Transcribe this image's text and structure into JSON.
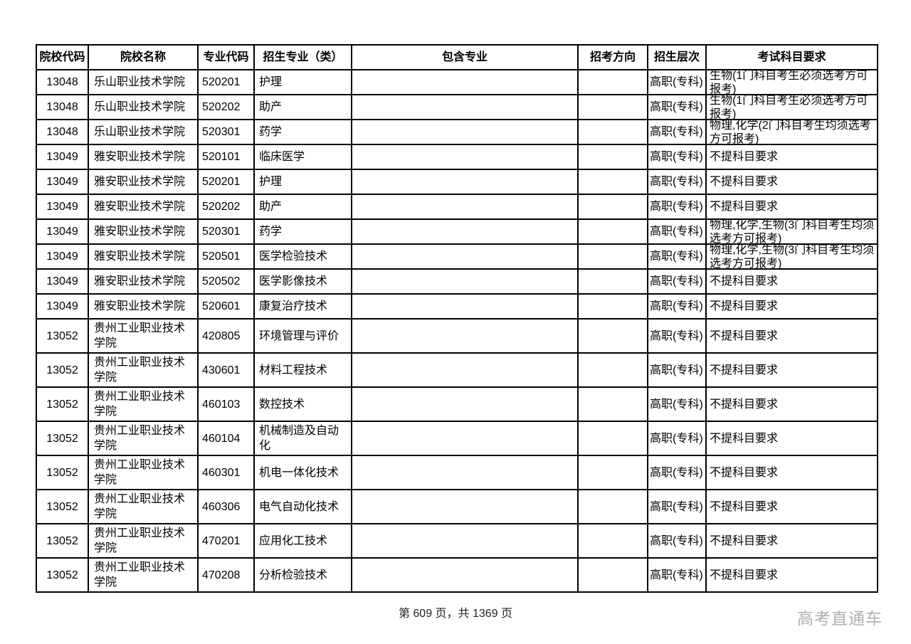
{
  "page": {
    "footer": "第 609 页，共 1369 页",
    "watermark": "高考直通车"
  },
  "table": {
    "headers": [
      "院校代码",
      "院校名称",
      "专业代码",
      "招生专业（类）",
      "包含专业",
      "招考方向",
      "招生层次",
      "考试科目要求"
    ],
    "rows": [
      {
        "college_code": "13048",
        "college_name": "乐山职业技术学院",
        "major_code": "520201",
        "major": "护理",
        "included_majors": "",
        "direction": "",
        "level": "高职(专科)",
        "requirement": "生物(1门科目考生必须选考方可报考)"
      },
      {
        "college_code": "13048",
        "college_name": "乐山职业技术学院",
        "major_code": "520202",
        "major": "助产",
        "included_majors": "",
        "direction": "",
        "level": "高职(专科)",
        "requirement": "生物(1门科目考生必须选考方可报考)"
      },
      {
        "college_code": "13048",
        "college_name": "乐山职业技术学院",
        "major_code": "520301",
        "major": "药学",
        "included_majors": "",
        "direction": "",
        "level": "高职(专科)",
        "requirement": "物理,化学(2门科目考生均须选考方可报考)"
      },
      {
        "college_code": "13049",
        "college_name": "雅安职业技术学院",
        "major_code": "520101",
        "major": "临床医学",
        "included_majors": "",
        "direction": "",
        "level": "高职(专科)",
        "requirement": "不提科目要求"
      },
      {
        "college_code": "13049",
        "college_name": "雅安职业技术学院",
        "major_code": "520201",
        "major": "护理",
        "included_majors": "",
        "direction": "",
        "level": "高职(专科)",
        "requirement": "不提科目要求"
      },
      {
        "college_code": "13049",
        "college_name": "雅安职业技术学院",
        "major_code": "520202",
        "major": "助产",
        "included_majors": "",
        "direction": "",
        "level": "高职(专科)",
        "requirement": "不提科目要求"
      },
      {
        "college_code": "13049",
        "college_name": "雅安职业技术学院",
        "major_code": "520301",
        "major": "药学",
        "included_majors": "",
        "direction": "",
        "level": "高职(专科)",
        "requirement": "物理,化学,生物(3门科目考生均须选考方可报考)"
      },
      {
        "college_code": "13049",
        "college_name": "雅安职业技术学院",
        "major_code": "520501",
        "major": "医学检验技术",
        "included_majors": "",
        "direction": "",
        "level": "高职(专科)",
        "requirement": "物理,化学,生物(3门科目考生均须选考方可报考)"
      },
      {
        "college_code": "13049",
        "college_name": "雅安职业技术学院",
        "major_code": "520502",
        "major": "医学影像技术",
        "included_majors": "",
        "direction": "",
        "level": "高职(专科)",
        "requirement": "不提科目要求"
      },
      {
        "college_code": "13049",
        "college_name": "雅安职业技术学院",
        "major_code": "520601",
        "major": "康复治疗技术",
        "included_majors": "",
        "direction": "",
        "level": "高职(专科)",
        "requirement": "不提科目要求"
      },
      {
        "college_code": "13052",
        "college_name": "贵州工业职业技术学院",
        "major_code": "420805",
        "major": "环境管理与评价",
        "included_majors": "",
        "direction": "",
        "level": "高职(专科)",
        "requirement": "不提科目要求"
      },
      {
        "college_code": "13052",
        "college_name": "贵州工业职业技术学院",
        "major_code": "430601",
        "major": "材料工程技术",
        "included_majors": "",
        "direction": "",
        "level": "高职(专科)",
        "requirement": "不提科目要求"
      },
      {
        "college_code": "13052",
        "college_name": "贵州工业职业技术学院",
        "major_code": "460103",
        "major": "数控技术",
        "included_majors": "",
        "direction": "",
        "level": "高职(专科)",
        "requirement": "不提科目要求"
      },
      {
        "college_code": "13052",
        "college_name": "贵州工业职业技术学院",
        "major_code": "460104",
        "major": "机械制造及自动化",
        "included_majors": "",
        "direction": "",
        "level": "高职(专科)",
        "requirement": "不提科目要求"
      },
      {
        "college_code": "13052",
        "college_name": "贵州工业职业技术学院",
        "major_code": "460301",
        "major": "机电一体化技术",
        "included_majors": "",
        "direction": "",
        "level": "高职(专科)",
        "requirement": "不提科目要求"
      },
      {
        "college_code": "13052",
        "college_name": "贵州工业职业技术学院",
        "major_code": "460306",
        "major": "电气自动化技术",
        "included_majors": "",
        "direction": "",
        "level": "高职(专科)",
        "requirement": "不提科目要求"
      },
      {
        "college_code": "13052",
        "college_name": "贵州工业职业技术学院",
        "major_code": "470201",
        "major": "应用化工技术",
        "included_majors": "",
        "direction": "",
        "level": "高职(专科)",
        "requirement": "不提科目要求"
      },
      {
        "college_code": "13052",
        "college_name": "贵州工业职业技术学院",
        "major_code": "470208",
        "major": "分析检验技术",
        "included_majors": "",
        "direction": "",
        "level": "高职(专科)",
        "requirement": "不提科目要求"
      }
    ]
  }
}
